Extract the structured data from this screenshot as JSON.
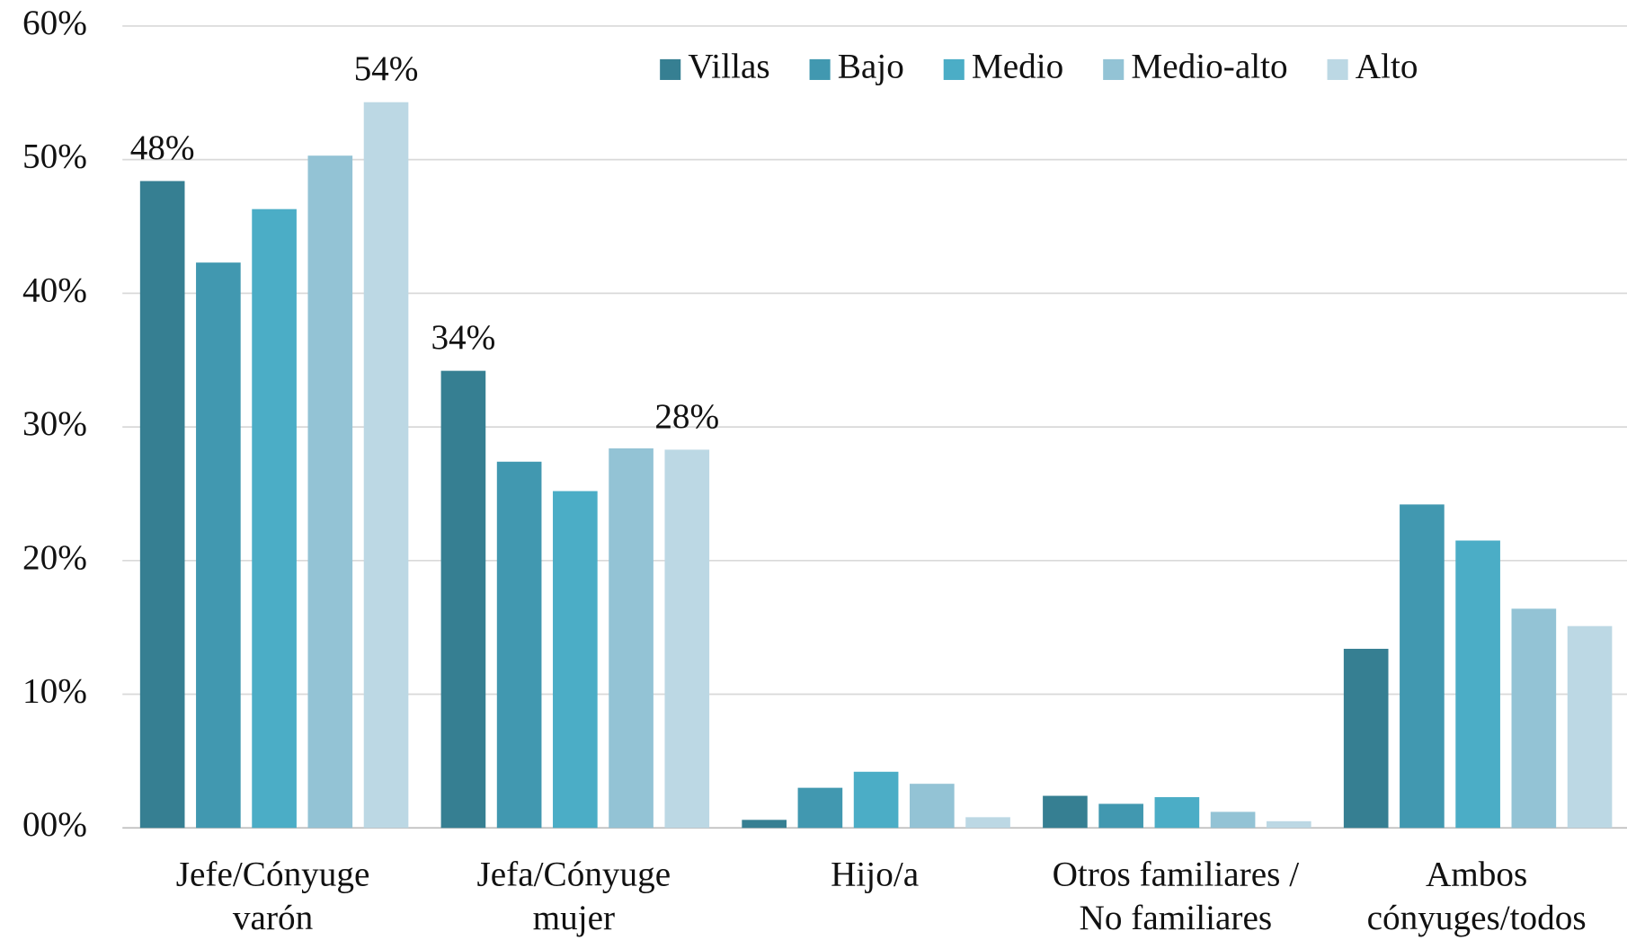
{
  "chart_data": {
    "type": "bar",
    "categories": [
      [
        "Jefe/Cónyuge",
        "varón"
      ],
      [
        "Jefa/Cónyuge",
        "mujer"
      ],
      [
        "Hijo/a"
      ],
      [
        "Otros familiares /",
        "No familiares"
      ],
      [
        "Ambos",
        "cónyuges/todos"
      ]
    ],
    "series": [
      {
        "name": "Villas",
        "color": "#367f92",
        "values": [
          48.4,
          34.2,
          0.6,
          2.4,
          13.4
        ],
        "value_labels": [
          "48%",
          "34%",
          null,
          null,
          null
        ]
      },
      {
        "name": "Bajo",
        "color": "#4198b0",
        "values": [
          42.3,
          27.4,
          3.0,
          1.8,
          24.2
        ]
      },
      {
        "name": "Medio",
        "color": "#4badc6",
        "values": [
          46.3,
          25.2,
          4.2,
          2.3,
          21.5
        ]
      },
      {
        "name": "Medio-alto",
        "color": "#93c3d5",
        "values": [
          50.3,
          28.4,
          3.3,
          1.2,
          16.4
        ]
      },
      {
        "name": "Alto",
        "color": "#bcd8e4",
        "values": [
          54.3,
          28.3,
          0.8,
          0.5,
          15.1
        ],
        "value_labels": [
          "54%",
          "28%",
          null,
          null,
          null
        ]
      }
    ],
    "ylim": [
      0,
      60
    ],
    "yticks": [
      {
        "value": 0,
        "label": "00%"
      },
      {
        "value": 10,
        "label": "10%"
      },
      {
        "value": 20,
        "label": "20%"
      },
      {
        "value": 30,
        "label": "30%"
      },
      {
        "value": 40,
        "label": "40%"
      },
      {
        "value": 50,
        "label": "50%"
      },
      {
        "value": 60,
        "label": "60%"
      }
    ],
    "grid": true,
    "legend": "top-right"
  }
}
